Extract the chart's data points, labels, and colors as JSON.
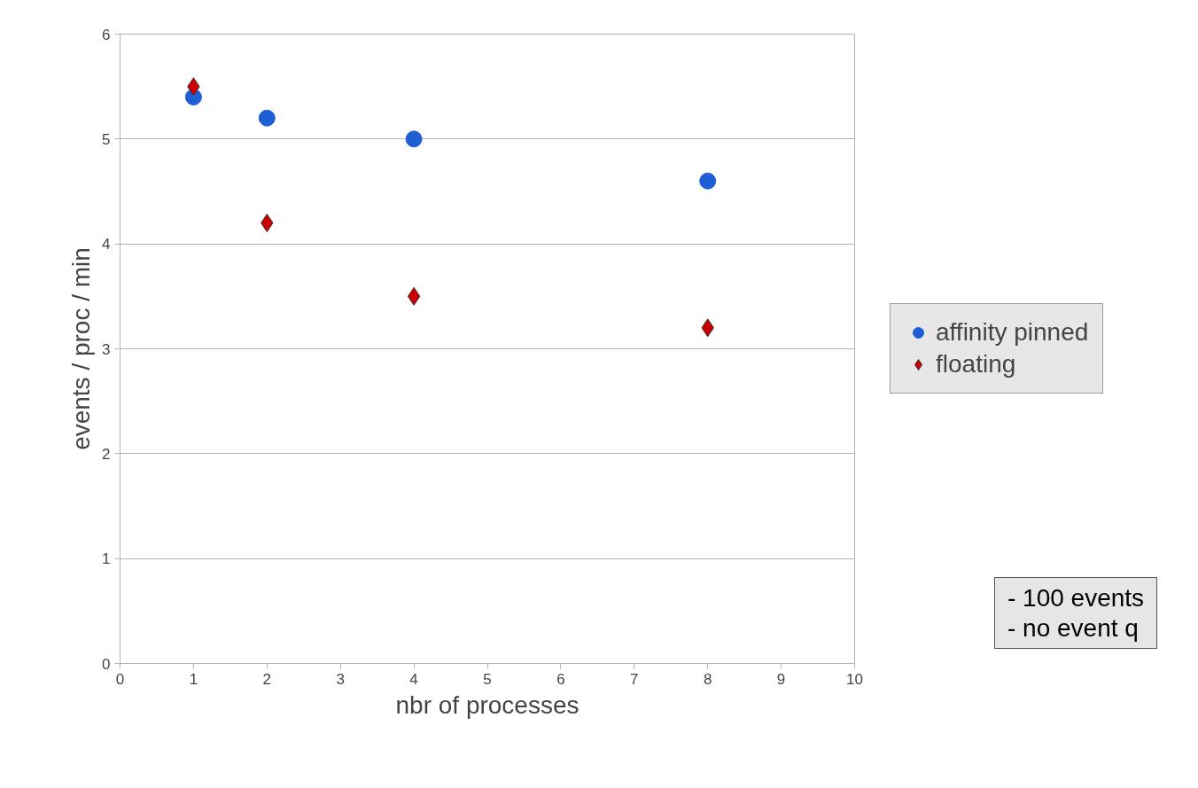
{
  "chart_data": {
    "type": "scatter",
    "xlabel": "nbr of processes",
    "ylabel": "events / proc / min",
    "x": [
      1,
      2,
      4,
      8
    ],
    "series": [
      {
        "name": "affinity pinned",
        "color": "#1f5fd6",
        "marker": "circle",
        "values": [
          5.4,
          5.2,
          5.0,
          4.6
        ]
      },
      {
        "name": "floating",
        "color": "#cc0000",
        "marker": "diamond",
        "values": [
          5.5,
          4.2,
          3.5,
          3.2
        ]
      }
    ],
    "xlim": [
      0,
      10
    ],
    "xticks": [
      0,
      1,
      2,
      3,
      4,
      5,
      6,
      7,
      8,
      9,
      10
    ],
    "ylim": [
      0,
      6
    ],
    "yticks": [
      0,
      1,
      2,
      3,
      4,
      5,
      6
    ],
    "grid": "y",
    "legend": "right",
    "annotations": [
      "- 100 events",
      "- no event q"
    ]
  }
}
